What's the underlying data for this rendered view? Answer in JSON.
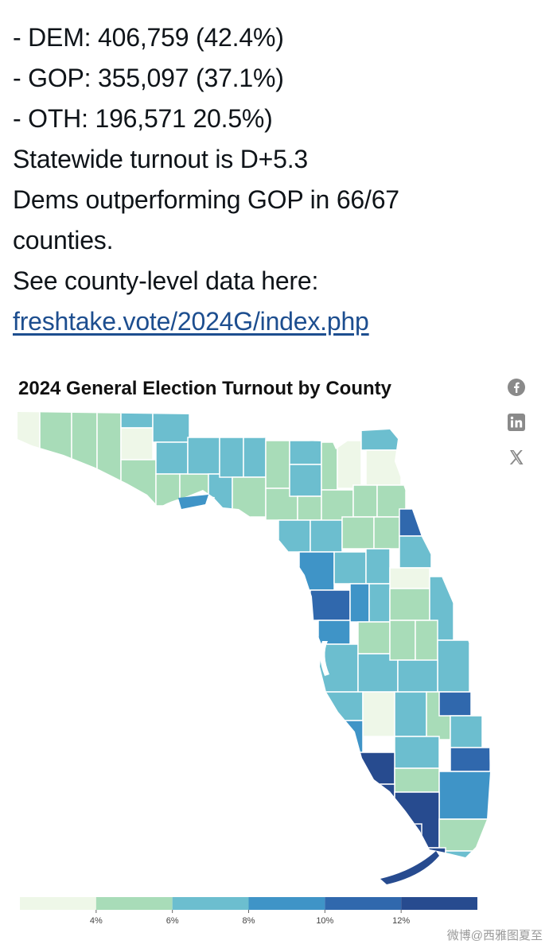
{
  "post": {
    "lines": [
      "- DEM: 406,759 (42.4%)",
      "- GOP: 355,097 (37.1%)",
      "- OTH: 196,571  20.5%)",
      "Statewide turnout is D+5.3",
      "Dems outperforming GOP in 66/67",
      "counties.",
      "See county-level data here:"
    ],
    "link_text": "freshtake.vote/2024G/index.php"
  },
  "share_icons": [
    "facebook-icon",
    "linkedin-icon",
    "x-icon"
  ],
  "colors": {
    "text": "#0f1419",
    "link": "#1d4e8f",
    "scale": [
      "#eef7e8",
      "#a8dcb8",
      "#6cbecf",
      "#3f94c7",
      "#3068ad",
      "#274b8f"
    ]
  },
  "chart_data": {
    "type": "choropleth",
    "title": "2024 General Election Turnout by County",
    "legend": {
      "ticks": [
        "4%",
        "6%",
        "8%",
        "10%",
        "12%"
      ],
      "bins": [
        {
          "min": 2,
          "max": 4,
          "color": "#eef7e8"
        },
        {
          "min": 4,
          "max": 6,
          "color": "#a8dcb8"
        },
        {
          "min": 6,
          "max": 8,
          "color": "#6cbecf"
        },
        {
          "min": 8,
          "max": 10,
          "color": "#3f94c7"
        },
        {
          "min": 10,
          "max": 12,
          "color": "#3068ad"
        },
        {
          "min": 12,
          "max": 14,
          "color": "#274b8f"
        }
      ],
      "placement": "bottom"
    }
  },
  "watermark": "微博@西雅图夏至"
}
